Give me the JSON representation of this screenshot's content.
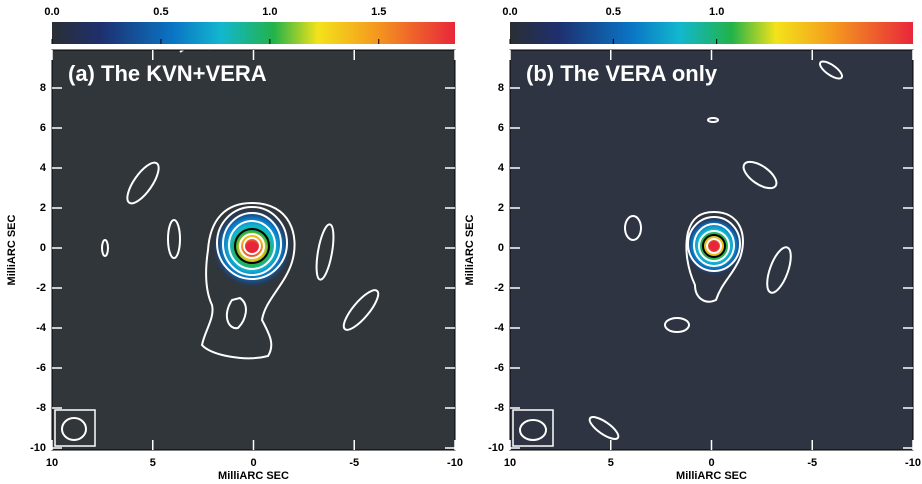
{
  "panels": [
    {
      "title": "(a) The KVN+VERA",
      "colorbar": {
        "lim": [
          0,
          1.85
        ],
        "ticks": [
          {
            "value": 0,
            "label": "0.0"
          },
          0.5,
          {
            "value": 1,
            "label": "1.0"
          },
          1.5
        ]
      },
      "xlim": [
        10,
        -10
      ],
      "xticks": [
        10,
        5,
        0,
        -5,
        -10
      ],
      "ylim": [
        -10.1,
        9.9
      ],
      "yticks": [
        8,
        6,
        4,
        2,
        0,
        -2,
        -4,
        -6,
        -8,
        -10
      ],
      "xlabel": "MilliARC SEC",
      "ylabel": "MilliARC SEC"
    },
    {
      "title": "(b) The VERA only",
      "colorbar": {
        "lim": [
          0,
          1.95
        ],
        "ticks": [
          {
            "value": 0,
            "label": "0.0"
          },
          0.5,
          {
            "value": 1,
            "label": "1.0"
          }
        ]
      },
      "xlim": [
        10,
        -10
      ],
      "xticks": [
        10,
        5,
        0,
        -5,
        -10
      ],
      "ylim": [
        -10.1,
        9.9
      ],
      "yticks": [
        8,
        6,
        4,
        2,
        0,
        -2,
        -4,
        -6,
        -8,
        -10
      ],
      "xlabel": "MilliARC SEC",
      "ylabel": "MilliARC SEC"
    }
  ]
}
